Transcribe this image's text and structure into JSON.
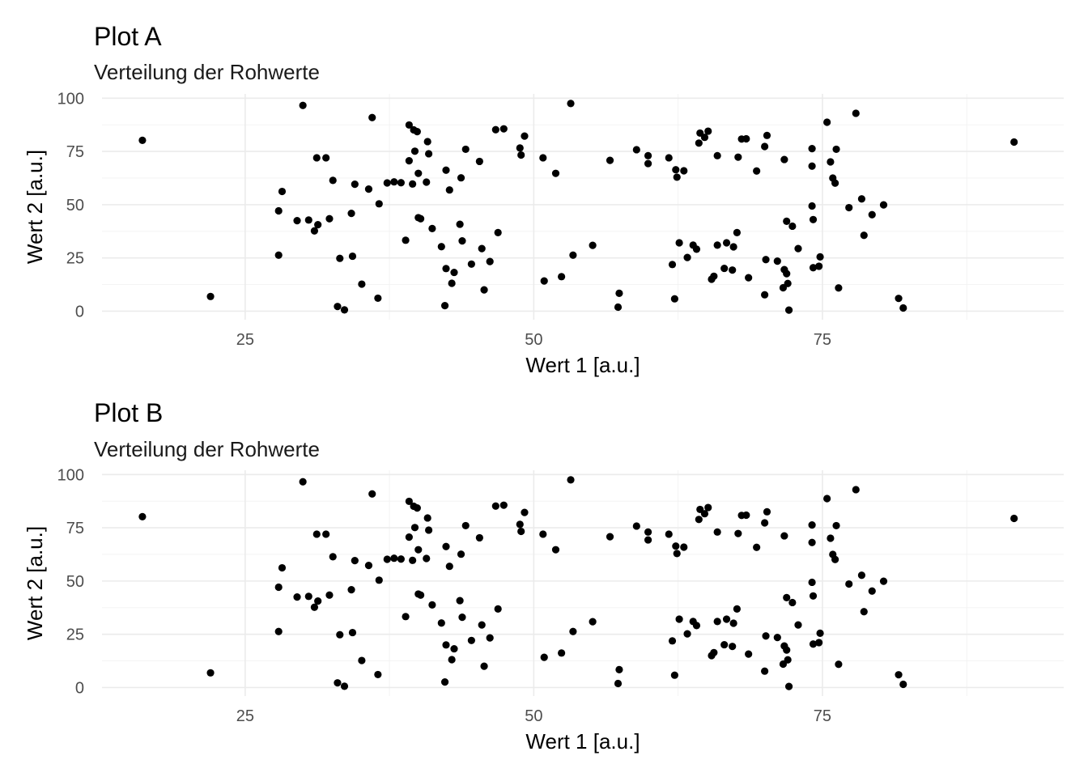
{
  "chart_data": [
    {
      "type": "scatter",
      "title": "Plot A",
      "subtitle": "Verteilung der Rohwerte",
      "xlabel": "Wert 1  [a.u.]",
      "ylabel": "Wert 2 [a.u.]",
      "xlim": [
        12.6,
        95.9
      ],
      "ylim": [
        -4,
        102
      ],
      "x_ticks": [
        25,
        50,
        75
      ],
      "y_ticks": [
        0,
        25,
        50,
        75,
        100
      ],
      "grid": true,
      "legend": "none",
      "point_color": "#000000",
      "points": [
        [
          16.1,
          80.2
        ],
        [
          22.0,
          6.9
        ],
        [
          27.9,
          26.3
        ],
        [
          27.9,
          47.1
        ],
        [
          28.2,
          56.2
        ],
        [
          29.5,
          42.5
        ],
        [
          30.0,
          96.6
        ],
        [
          30.5,
          42.8
        ],
        [
          31.0,
          37.7
        ],
        [
          31.2,
          72.0
        ],
        [
          31.3,
          40.6
        ],
        [
          32.0,
          72.0
        ],
        [
          32.3,
          43.4
        ],
        [
          32.6,
          61.4
        ],
        [
          33.0,
          2.2
        ],
        [
          33.2,
          24.8
        ],
        [
          33.6,
          0.6
        ],
        [
          34.2,
          45.9
        ],
        [
          34.3,
          25.8
        ],
        [
          34.5,
          59.6
        ],
        [
          35.1,
          12.7
        ],
        [
          35.7,
          57.3
        ],
        [
          36.0,
          90.9
        ],
        [
          36.5,
          6.1
        ],
        [
          36.6,
          50.4
        ],
        [
          37.3,
          60.2
        ],
        [
          37.9,
          60.7
        ],
        [
          38.5,
          60.3
        ],
        [
          38.9,
          33.3
        ],
        [
          39.2,
          70.6
        ],
        [
          39.2,
          87.4
        ],
        [
          39.5,
          59.7
        ],
        [
          39.6,
          85.1
        ],
        [
          39.7,
          75.1
        ],
        [
          39.9,
          84.3
        ],
        [
          40.0,
          43.9
        ],
        [
          40.0,
          64.7
        ],
        [
          40.2,
          43.4
        ],
        [
          40.7,
          60.6
        ],
        [
          40.8,
          79.6
        ],
        [
          40.9,
          73.9
        ],
        [
          41.2,
          38.8
        ],
        [
          42.0,
          30.3
        ],
        [
          42.3,
          2.6
        ],
        [
          42.4,
          20.0
        ],
        [
          42.4,
          66.2
        ],
        [
          42.7,
          56.9
        ],
        [
          42.9,
          13.1
        ],
        [
          43.1,
          18.2
        ],
        [
          43.6,
          40.8
        ],
        [
          43.7,
          62.6
        ],
        [
          43.8,
          33.0
        ],
        [
          44.1,
          76.0
        ],
        [
          44.6,
          22.1
        ],
        [
          45.3,
          70.3
        ],
        [
          45.5,
          29.4
        ],
        [
          45.7,
          10.0
        ],
        [
          46.2,
          23.3
        ],
        [
          46.7,
          85.2
        ],
        [
          46.9,
          36.9
        ],
        [
          47.4,
          85.6
        ],
        [
          48.8,
          76.6
        ],
        [
          48.9,
          73.3
        ],
        [
          49.2,
          82.2
        ],
        [
          50.8,
          72.0
        ],
        [
          50.9,
          14.2
        ],
        [
          51.9,
          64.7
        ],
        [
          52.4,
          16.2
        ],
        [
          53.2,
          97.5
        ],
        [
          53.4,
          26.3
        ],
        [
          55.1,
          30.9
        ],
        [
          56.6,
          70.8
        ],
        [
          57.3,
          1.9
        ],
        [
          57.4,
          8.4
        ],
        [
          58.9,
          75.8
        ],
        [
          59.9,
          69.3
        ],
        [
          59.9,
          73.0
        ],
        [
          61.7,
          72.0
        ],
        [
          62.0,
          21.9
        ],
        [
          62.2,
          5.8
        ],
        [
          62.3,
          66.4
        ],
        [
          62.4,
          62.9
        ],
        [
          62.6,
          32.1
        ],
        [
          63.0,
          65.9
        ],
        [
          63.3,
          25.2
        ],
        [
          63.8,
          31.0
        ],
        [
          64.1,
          29.1
        ],
        [
          64.3,
          78.9
        ],
        [
          64.4,
          83.6
        ],
        [
          64.8,
          81.6
        ],
        [
          65.1,
          84.5
        ],
        [
          65.4,
          15.0
        ],
        [
          65.6,
          16.4
        ],
        [
          65.9,
          73.0
        ],
        [
          65.9,
          31.0
        ],
        [
          66.5,
          20.1
        ],
        [
          66.7,
          32.1
        ],
        [
          67.2,
          19.3
        ],
        [
          67.3,
          30.2
        ],
        [
          67.6,
          36.9
        ],
        [
          67.7,
          72.3
        ],
        [
          68.0,
          80.8
        ],
        [
          68.4,
          80.9
        ],
        [
          68.6,
          15.7
        ],
        [
          69.3,
          65.8
        ],
        [
          70.0,
          7.7
        ],
        [
          70.0,
          77.3
        ],
        [
          70.1,
          24.2
        ],
        [
          70.2,
          82.5
        ],
        [
          71.1,
          23.5
        ],
        [
          71.6,
          11.0
        ],
        [
          71.7,
          71.2
        ],
        [
          71.7,
          19.5
        ],
        [
          71.9,
          42.2
        ],
        [
          71.9,
          17.6
        ],
        [
          72.0,
          13.0
        ],
        [
          72.1,
          0.5
        ],
        [
          72.4,
          39.9
        ],
        [
          72.9,
          29.4
        ],
        [
          74.1,
          76.3
        ],
        [
          74.1,
          49.4
        ],
        [
          74.1,
          68.1
        ],
        [
          74.2,
          20.4
        ],
        [
          74.2,
          43.0
        ],
        [
          74.7,
          21.1
        ],
        [
          74.8,
          25.5
        ],
        [
          75.4,
          88.7
        ],
        [
          75.7,
          70.1
        ],
        [
          75.9,
          62.5
        ],
        [
          76.1,
          60.1
        ],
        [
          76.2,
          76.0
        ],
        [
          76.4,
          10.9
        ],
        [
          77.3,
          48.6
        ],
        [
          77.9,
          92.9
        ],
        [
          78.4,
          52.7
        ],
        [
          78.6,
          35.6
        ],
        [
          79.3,
          45.3
        ],
        [
          80.3,
          49.9
        ],
        [
          81.6,
          6.0
        ],
        [
          82.0,
          1.5
        ],
        [
          91.6,
          79.4
        ]
      ]
    },
    {
      "type": "scatter",
      "title": "Plot B",
      "subtitle": "Verteilung der Rohwerte",
      "xlabel": "Wert 1  [a.u.]",
      "ylabel": "Wert 2 [a.u.]",
      "xlim": [
        12.6,
        95.9
      ],
      "ylim": [
        -4,
        102
      ],
      "x_ticks": [
        25,
        50,
        75
      ],
      "y_ticks": [
        0,
        25,
        50,
        75,
        100
      ],
      "grid": true,
      "legend": "none",
      "point_color": "#000000",
      "points": [
        [
          16.1,
          80.2
        ],
        [
          22.0,
          6.9
        ],
        [
          27.9,
          26.3
        ],
        [
          27.9,
          47.1
        ],
        [
          28.2,
          56.2
        ],
        [
          29.5,
          42.5
        ],
        [
          30.0,
          96.6
        ],
        [
          30.5,
          42.8
        ],
        [
          31.0,
          37.7
        ],
        [
          31.2,
          72.0
        ],
        [
          31.3,
          40.6
        ],
        [
          32.0,
          72.0
        ],
        [
          32.3,
          43.4
        ],
        [
          32.6,
          61.4
        ],
        [
          33.0,
          2.2
        ],
        [
          33.2,
          24.8
        ],
        [
          33.6,
          0.6
        ],
        [
          34.2,
          45.9
        ],
        [
          34.3,
          25.8
        ],
        [
          34.5,
          59.6
        ],
        [
          35.1,
          12.7
        ],
        [
          35.7,
          57.3
        ],
        [
          36.0,
          90.9
        ],
        [
          36.5,
          6.1
        ],
        [
          36.6,
          50.4
        ],
        [
          37.3,
          60.2
        ],
        [
          37.9,
          60.7
        ],
        [
          38.5,
          60.3
        ],
        [
          38.9,
          33.3
        ],
        [
          39.2,
          70.6
        ],
        [
          39.2,
          87.4
        ],
        [
          39.5,
          59.7
        ],
        [
          39.6,
          85.1
        ],
        [
          39.7,
          75.1
        ],
        [
          39.9,
          84.3
        ],
        [
          40.0,
          43.9
        ],
        [
          40.0,
          64.7
        ],
        [
          40.2,
          43.4
        ],
        [
          40.7,
          60.6
        ],
        [
          40.8,
          79.6
        ],
        [
          40.9,
          73.9
        ],
        [
          41.2,
          38.8
        ],
        [
          42.0,
          30.3
        ],
        [
          42.3,
          2.6
        ],
        [
          42.4,
          20.0
        ],
        [
          42.4,
          66.2
        ],
        [
          42.7,
          56.9
        ],
        [
          42.9,
          13.1
        ],
        [
          43.1,
          18.2
        ],
        [
          43.6,
          40.8
        ],
        [
          43.7,
          62.6
        ],
        [
          43.8,
          33.0
        ],
        [
          44.1,
          76.0
        ],
        [
          44.6,
          22.1
        ],
        [
          45.3,
          70.3
        ],
        [
          45.5,
          29.4
        ],
        [
          45.7,
          10.0
        ],
        [
          46.2,
          23.3
        ],
        [
          46.7,
          85.2
        ],
        [
          46.9,
          36.9
        ],
        [
          47.4,
          85.6
        ],
        [
          48.8,
          76.6
        ],
        [
          48.9,
          73.3
        ],
        [
          49.2,
          82.2
        ],
        [
          50.8,
          72.0
        ],
        [
          50.9,
          14.2
        ],
        [
          51.9,
          64.7
        ],
        [
          52.4,
          16.2
        ],
        [
          53.2,
          97.5
        ],
        [
          53.4,
          26.3
        ],
        [
          55.1,
          30.9
        ],
        [
          56.6,
          70.8
        ],
        [
          57.3,
          1.9
        ],
        [
          57.4,
          8.4
        ],
        [
          58.9,
          75.8
        ],
        [
          59.9,
          69.3
        ],
        [
          59.9,
          73.0
        ],
        [
          61.7,
          72.0
        ],
        [
          62.0,
          21.9
        ],
        [
          62.2,
          5.8
        ],
        [
          62.3,
          66.4
        ],
        [
          62.4,
          62.9
        ],
        [
          62.6,
          32.1
        ],
        [
          63.0,
          65.9
        ],
        [
          63.3,
          25.2
        ],
        [
          63.8,
          31.0
        ],
        [
          64.1,
          29.1
        ],
        [
          64.3,
          78.9
        ],
        [
          64.4,
          83.6
        ],
        [
          64.8,
          81.6
        ],
        [
          65.1,
          84.5
        ],
        [
          65.4,
          15.0
        ],
        [
          65.6,
          16.4
        ],
        [
          65.9,
          73.0
        ],
        [
          65.9,
          31.0
        ],
        [
          66.5,
          20.1
        ],
        [
          66.7,
          32.1
        ],
        [
          67.2,
          19.3
        ],
        [
          67.3,
          30.2
        ],
        [
          67.6,
          36.9
        ],
        [
          67.7,
          72.3
        ],
        [
          68.0,
          80.8
        ],
        [
          68.4,
          80.9
        ],
        [
          68.6,
          15.7
        ],
        [
          69.3,
          65.8
        ],
        [
          70.0,
          7.7
        ],
        [
          70.0,
          77.3
        ],
        [
          70.1,
          24.2
        ],
        [
          70.2,
          82.5
        ],
        [
          71.1,
          23.5
        ],
        [
          71.6,
          11.0
        ],
        [
          71.7,
          71.2
        ],
        [
          71.7,
          19.5
        ],
        [
          71.9,
          42.2
        ],
        [
          71.9,
          17.6
        ],
        [
          72.0,
          13.0
        ],
        [
          72.1,
          0.5
        ],
        [
          72.4,
          39.9
        ],
        [
          72.9,
          29.4
        ],
        [
          74.1,
          76.3
        ],
        [
          74.1,
          49.4
        ],
        [
          74.1,
          68.1
        ],
        [
          74.2,
          20.4
        ],
        [
          74.2,
          43.0
        ],
        [
          74.7,
          21.1
        ],
        [
          74.8,
          25.5
        ],
        [
          75.4,
          88.7
        ],
        [
          75.7,
          70.1
        ],
        [
          75.9,
          62.5
        ],
        [
          76.1,
          60.1
        ],
        [
          76.2,
          76.0
        ],
        [
          76.4,
          10.9
        ],
        [
          77.3,
          48.6
        ],
        [
          77.9,
          92.9
        ],
        [
          78.4,
          52.7
        ],
        [
          78.6,
          35.6
        ],
        [
          79.3,
          45.3
        ],
        [
          80.3,
          49.9
        ],
        [
          81.6,
          6.0
        ],
        [
          82.0,
          1.5
        ],
        [
          91.6,
          79.4
        ]
      ]
    }
  ]
}
